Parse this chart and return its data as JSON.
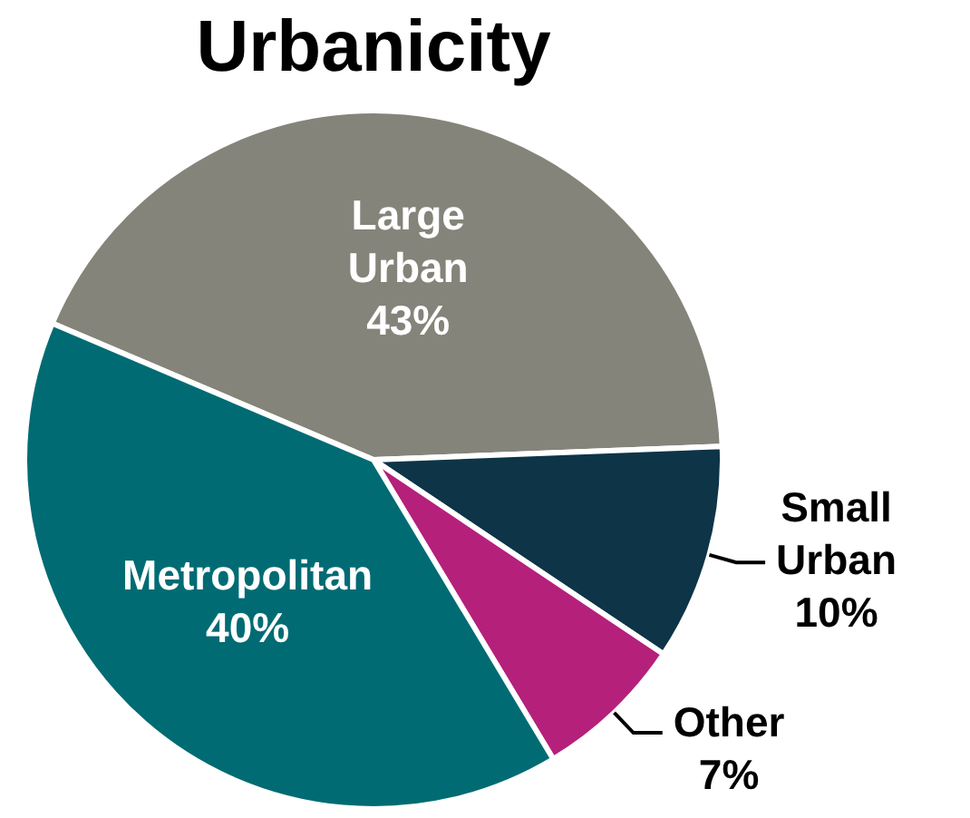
{
  "chart_data": {
    "type": "pie",
    "title": "Urbanicity",
    "categories": [
      "Large Urban",
      "Small Urban",
      "Other",
      "Metropolitan"
    ],
    "values": [
      43,
      10,
      7,
      40
    ],
    "value_labels": [
      "43%",
      "10%",
      "7%",
      "40%"
    ],
    "colors": [
      "#85847a",
      "#0d3447",
      "#b5207a",
      "#006b73"
    ],
    "legend": false
  }
}
